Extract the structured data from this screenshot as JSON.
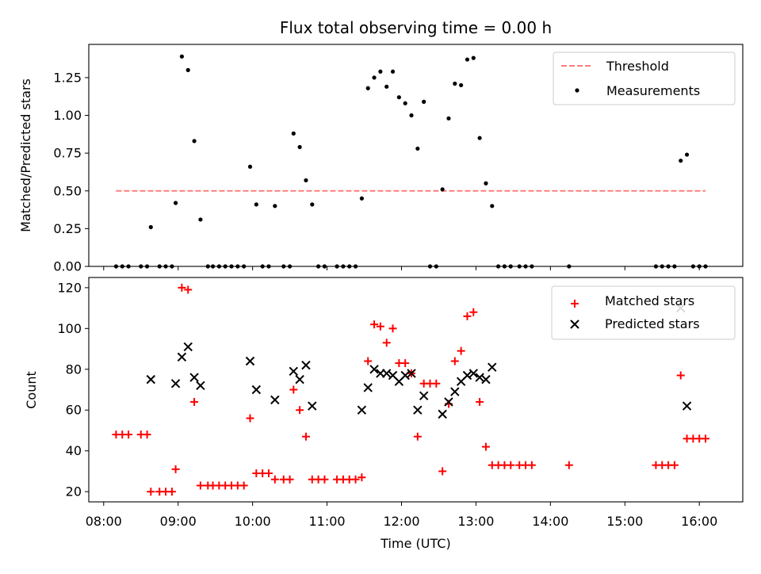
{
  "chart_data": [
    {
      "type": "scatter",
      "title": "Flux total observing time = 0.00 h",
      "xlabel": "",
      "ylabel": "Matched/Predicted stars",
      "xlim": [
        "07:48",
        "16:35"
      ],
      "ylim": [
        0,
        1.47
      ],
      "yticks": [
        "0.00",
        "0.25",
        "0.50",
        "0.75",
        "1.00",
        "1.25"
      ],
      "grid": false,
      "legend_position": "top-right",
      "threshold": {
        "name": "Threshold",
        "value": 0.5,
        "x_start": "08:10",
        "x_end": "16:05",
        "color": "#ff7f7f"
      },
      "series": [
        {
          "name": "Measurements",
          "color": "#000000",
          "points": [
            [
              "08:10",
              0
            ],
            [
              "08:15",
              0
            ],
            [
              "08:20",
              0
            ],
            [
              "08:30",
              0
            ],
            [
              "08:35",
              0
            ],
            [
              "08:38",
              0.26
            ],
            [
              "08:45",
              0
            ],
            [
              "08:50",
              0
            ],
            [
              "08:55",
              0
            ],
            [
              "08:58",
              0.42
            ],
            [
              "09:03",
              1.39
            ],
            [
              "09:08",
              1.3
            ],
            [
              "09:13",
              0.83
            ],
            [
              "09:18",
              0.31
            ],
            [
              "09:24",
              0
            ],
            [
              "09:28",
              0
            ],
            [
              "09:33",
              0
            ],
            [
              "09:38",
              0
            ],
            [
              "09:43",
              0
            ],
            [
              "09:48",
              0
            ],
            [
              "09:53",
              0
            ],
            [
              "09:58",
              0.66
            ],
            [
              "10:03",
              0.41
            ],
            [
              "10:08",
              0
            ],
            [
              "10:13",
              0
            ],
            [
              "10:18",
              0.4
            ],
            [
              "10:25",
              0
            ],
            [
              "10:30",
              0
            ],
            [
              "10:33",
              0.88
            ],
            [
              "10:38",
              0.79
            ],
            [
              "10:43",
              0.57
            ],
            [
              "10:48",
              0.41
            ],
            [
              "10:53",
              0
            ],
            [
              "10:58",
              0
            ],
            [
              "11:08",
              0
            ],
            [
              "11:13",
              0
            ],
            [
              "11:18",
              0
            ],
            [
              "11:23",
              0
            ],
            [
              "11:28",
              0.45
            ],
            [
              "11:33",
              1.18
            ],
            [
              "11:38",
              1.25
            ],
            [
              "11:43",
              1.29
            ],
            [
              "11:48",
              1.19
            ],
            [
              "11:53",
              1.29
            ],
            [
              "11:58",
              1.12
            ],
            [
              "12:03",
              1.08
            ],
            [
              "12:08",
              1.0
            ],
            [
              "12:13",
              0.78
            ],
            [
              "12:18",
              1.09
            ],
            [
              "12:23",
              0
            ],
            [
              "12:28",
              0
            ],
            [
              "12:33",
              0.51
            ],
            [
              "12:38",
              0.98
            ],
            [
              "12:43",
              1.21
            ],
            [
              "12:48",
              1.2
            ],
            [
              "12:53",
              1.37
            ],
            [
              "12:58",
              1.38
            ],
            [
              "13:03",
              0.85
            ],
            [
              "13:08",
              0.55
            ],
            [
              "13:13",
              0.4
            ],
            [
              "13:18",
              0
            ],
            [
              "13:23",
              0
            ],
            [
              "13:28",
              0
            ],
            [
              "13:35",
              0
            ],
            [
              "13:40",
              0
            ],
            [
              "13:45",
              0
            ],
            [
              "14:15",
              0
            ],
            [
              "15:25",
              0
            ],
            [
              "15:30",
              0
            ],
            [
              "15:35",
              0
            ],
            [
              "15:40",
              0
            ],
            [
              "15:45",
              0.7
            ],
            [
              "15:50",
              0.74
            ],
            [
              "15:55",
              0
            ],
            [
              "16:00",
              0
            ],
            [
              "16:05",
              0
            ]
          ]
        }
      ]
    },
    {
      "type": "scatter",
      "title": "",
      "xlabel": "Time (UTC)",
      "ylabel": "Count",
      "xlim": [
        "07:48",
        "16:35"
      ],
      "ylim": [
        15,
        125
      ],
      "yticks": [
        "20",
        "40",
        "60",
        "80",
        "100",
        "120"
      ],
      "xticks": [
        "08:00",
        "09:00",
        "10:00",
        "11:00",
        "12:00",
        "13:00",
        "14:00",
        "15:00",
        "16:00"
      ],
      "grid": false,
      "legend_position": "top-right",
      "series": [
        {
          "name": "Matched stars",
          "marker": "plus",
          "color": "#ff0000",
          "points": [
            [
              "08:10",
              48
            ],
            [
              "08:15",
              48
            ],
            [
              "08:20",
              48
            ],
            [
              "08:30",
              48
            ],
            [
              "08:35",
              48
            ],
            [
              "08:38",
              20
            ],
            [
              "08:45",
              20
            ],
            [
              "08:50",
              20
            ],
            [
              "08:55",
              20
            ],
            [
              "08:58",
              31
            ],
            [
              "09:03",
              120
            ],
            [
              "09:08",
              119
            ],
            [
              "09:13",
              64
            ],
            [
              "09:18",
              23
            ],
            [
              "09:24",
              23
            ],
            [
              "09:28",
              23
            ],
            [
              "09:33",
              23
            ],
            [
              "09:38",
              23
            ],
            [
              "09:43",
              23
            ],
            [
              "09:48",
              23
            ],
            [
              "09:53",
              23
            ],
            [
              "09:58",
              56
            ],
            [
              "10:03",
              29
            ],
            [
              "10:08",
              29
            ],
            [
              "10:13",
              29
            ],
            [
              "10:18",
              26
            ],
            [
              "10:25",
              26
            ],
            [
              "10:30",
              26
            ],
            [
              "10:33",
              70
            ],
            [
              "10:38",
              60
            ],
            [
              "10:43",
              47
            ],
            [
              "10:48",
              26
            ],
            [
              "10:53",
              26
            ],
            [
              "10:58",
              26
            ],
            [
              "11:08",
              26
            ],
            [
              "11:13",
              26
            ],
            [
              "11:18",
              26
            ],
            [
              "11:23",
              26
            ],
            [
              "11:28",
              27
            ],
            [
              "11:33",
              84
            ],
            [
              "11:38",
              102
            ],
            [
              "11:43",
              101
            ],
            [
              "11:48",
              93
            ],
            [
              "11:53",
              100
            ],
            [
              "11:58",
              83
            ],
            [
              "12:03",
              83
            ],
            [
              "12:08",
              78
            ],
            [
              "12:13",
              47
            ],
            [
              "12:18",
              73
            ],
            [
              "12:23",
              73
            ],
            [
              "12:28",
              73
            ],
            [
              "12:33",
              30
            ],
            [
              "12:38",
              63
            ],
            [
              "12:43",
              84
            ],
            [
              "12:48",
              89
            ],
            [
              "12:53",
              106
            ],
            [
              "12:58",
              108
            ],
            [
              "13:03",
              64
            ],
            [
              "13:08",
              42
            ],
            [
              "13:13",
              33
            ],
            [
              "13:18",
              33
            ],
            [
              "13:23",
              33
            ],
            [
              "13:28",
              33
            ],
            [
              "13:35",
              33
            ],
            [
              "13:40",
              33
            ],
            [
              "13:45",
              33
            ],
            [
              "14:15",
              33
            ],
            [
              "15:25",
              33
            ],
            [
              "15:30",
              33
            ],
            [
              "15:35",
              33
            ],
            [
              "15:40",
              33
            ],
            [
              "15:45",
              77
            ],
            [
              "15:50",
              46
            ],
            [
              "15:55",
              46
            ],
            [
              "16:00",
              46
            ],
            [
              "16:05",
              46
            ]
          ]
        },
        {
          "name": "Predicted stars",
          "marker": "x",
          "color": "#000000",
          "points": [
            [
              "08:38",
              75
            ],
            [
              "08:58",
              73
            ],
            [
              "09:03",
              86
            ],
            [
              "09:08",
              91
            ],
            [
              "09:13",
              76
            ],
            [
              "09:18",
              72
            ],
            [
              "09:58",
              84
            ],
            [
              "10:03",
              70
            ],
            [
              "10:18",
              65
            ],
            [
              "10:33",
              79
            ],
            [
              "10:38",
              75
            ],
            [
              "10:43",
              82
            ],
            [
              "10:48",
              62
            ],
            [
              "11:28",
              60
            ],
            [
              "11:33",
              71
            ],
            [
              "11:38",
              80
            ],
            [
              "11:43",
              78
            ],
            [
              "11:48",
              78
            ],
            [
              "11:53",
              77
            ],
            [
              "11:58",
              74
            ],
            [
              "12:03",
              77
            ],
            [
              "12:08",
              78
            ],
            [
              "12:13",
              60
            ],
            [
              "12:18",
              67
            ],
            [
              "12:33",
              58
            ],
            [
              "12:38",
              64
            ],
            [
              "12:43",
              69
            ],
            [
              "12:48",
              74
            ],
            [
              "12:53",
              77
            ],
            [
              "12:58",
              78
            ],
            [
              "13:03",
              76
            ],
            [
              "13:08",
              75
            ],
            [
              "13:13",
              81
            ],
            [
              "15:45",
              110
            ],
            [
              "15:50",
              62
            ]
          ]
        }
      ]
    }
  ]
}
